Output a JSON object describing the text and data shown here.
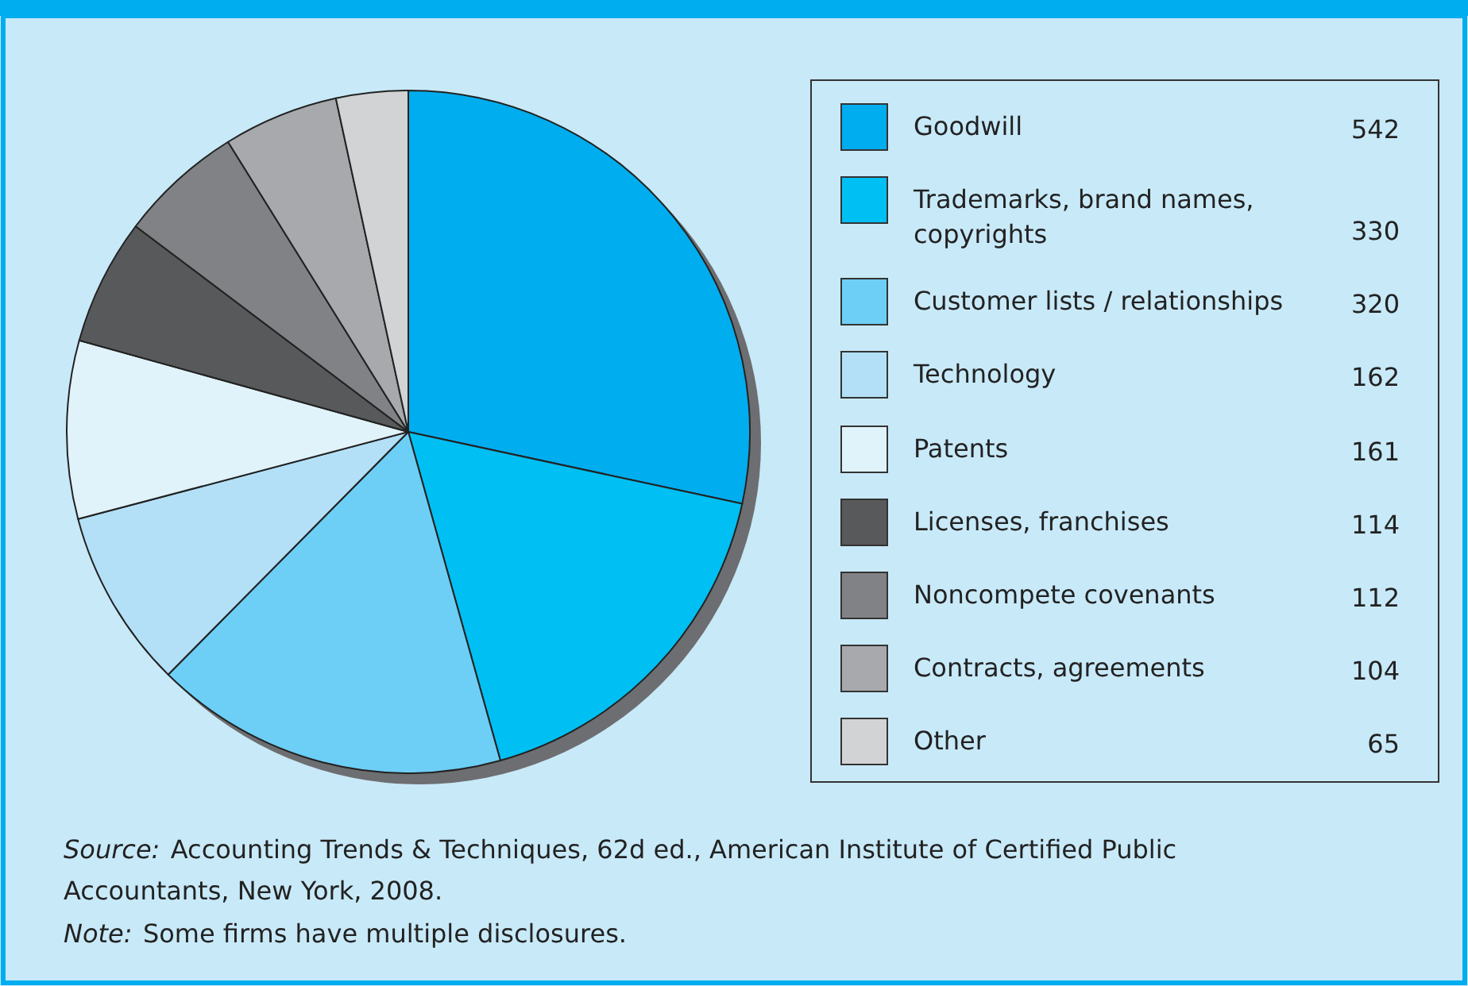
{
  "chart_data": {
    "type": "pie",
    "categories": [
      "Goodwill",
      "Trademarks, brand names, copyrights",
      "Customer lists / relationships",
      "Technology",
      "Patents",
      "Licenses, franchises",
      "Noncompete covenants",
      "Contracts, agreements",
      "Other"
    ],
    "values": [
      542,
      330,
      320,
      162,
      161,
      114,
      112,
      104,
      65
    ],
    "colors": [
      "#00adef",
      "#00bff3",
      "#6dcff6",
      "#b3e0f7",
      "#e0f3fb",
      "#58595b",
      "#808285",
      "#a7a9ac",
      "#d1d3d4"
    ],
    "data_labels": true,
    "legend": "right",
    "annotations": [
      "Source: Accounting Trends & Techniques, 62d ed., American Institute of Certified Public Accountants, New York, 2008.",
      "Note: Some firms have multiple disclosures."
    ]
  }
}
